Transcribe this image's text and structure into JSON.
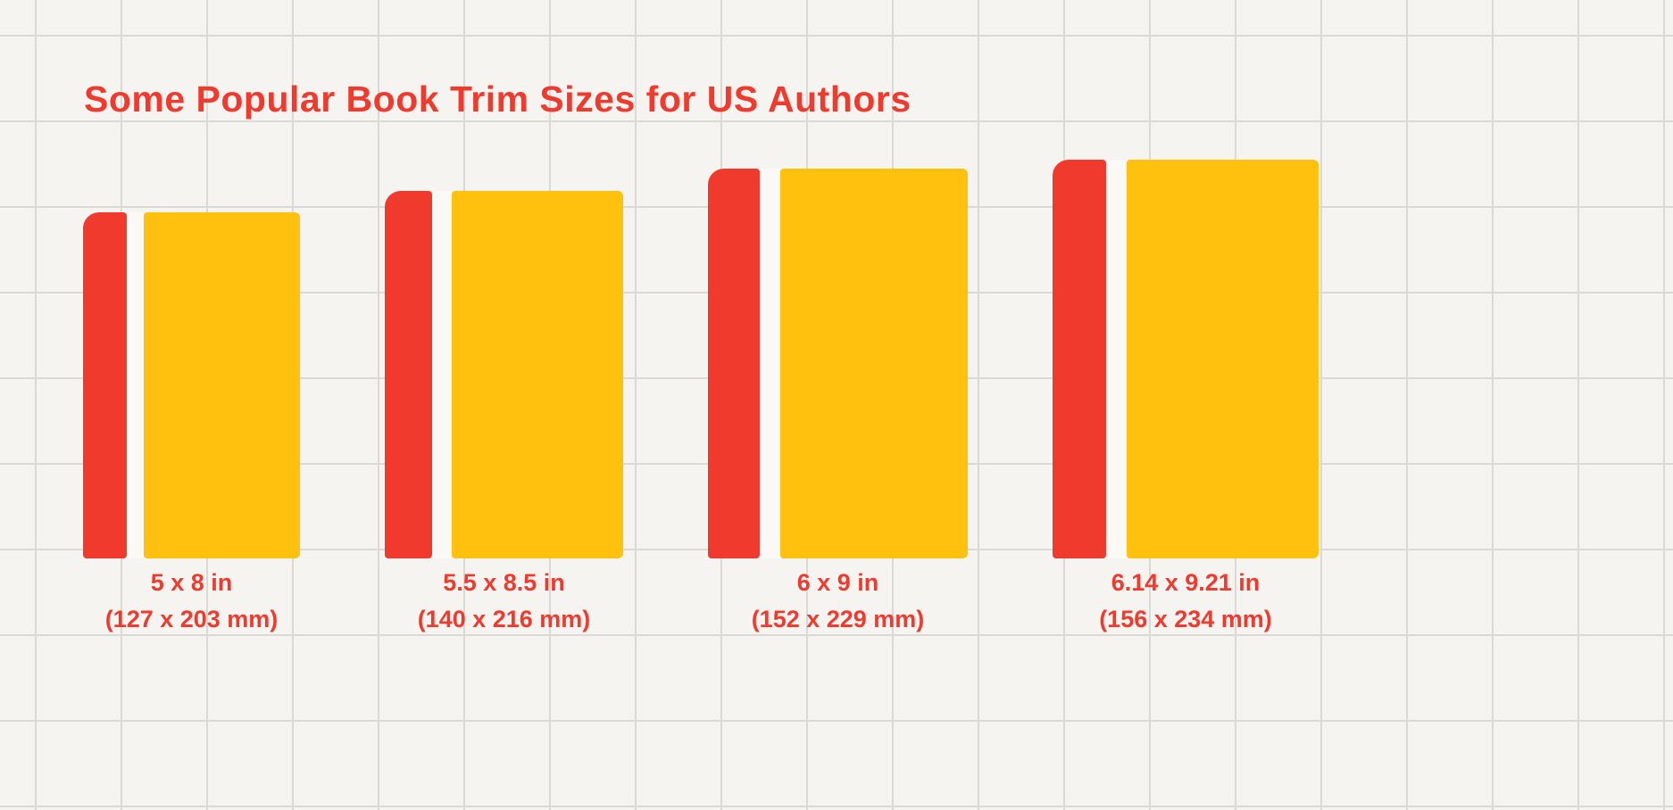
{
  "title": "Some Popular Book Trim Sizes for US Authors",
  "colors": {
    "accent_red": "#F03A2E",
    "book_cover_yellow": "#FFC10D",
    "paper_background": "#F6F4F0",
    "grid_line": "#DBD9D3"
  },
  "books": [
    {
      "size_in": "5 x 8 in",
      "size_mm": "(127 x 203 mm)",
      "width_in": 5,
      "height_in": 8
    },
    {
      "size_in": "5.5 x 8.5 in",
      "size_mm": "(140 x 216 mm)",
      "width_in": 5.5,
      "height_in": 8.5
    },
    {
      "size_in": "6 x 9 in",
      "size_mm": "(152 x 229 mm)",
      "width_in": 6,
      "height_in": 9
    },
    {
      "size_in": "6.14 x 9.21 in",
      "size_mm": "(156 x 234 mm)",
      "width_in": 6.14,
      "height_in": 9.21
    }
  ]
}
